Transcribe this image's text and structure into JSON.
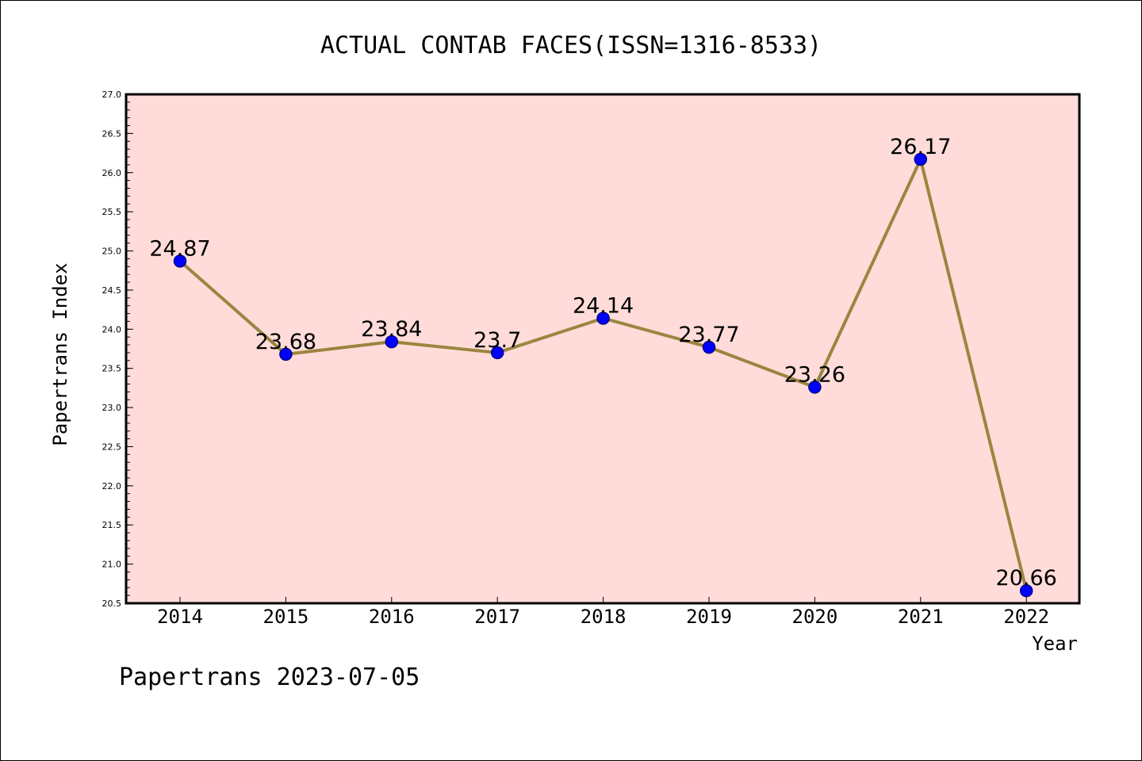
{
  "footer": {
    "text": "Papertrans 2023-07-05"
  },
  "chart_data": {
    "type": "line",
    "title": "ACTUAL CONTAB FACES(ISSN=1316-8533)",
    "xlabel": "Year",
    "ylabel": "Papertrans Index",
    "categories": [
      "2014",
      "2015",
      "2016",
      "2017",
      "2018",
      "2019",
      "2020",
      "2021",
      "2022"
    ],
    "values": [
      24.87,
      23.68,
      23.84,
      23.7,
      24.14,
      23.77,
      23.26,
      26.17,
      20.66
    ],
    "data_labels": [
      "24.87",
      "23.68",
      "23.84",
      "23.7",
      "24.14",
      "23.77",
      "23.26",
      "26.17",
      "20.66"
    ],
    "ylim": [
      20.5,
      27.0
    ],
    "yticks": [
      "20.5",
      "21.0",
      "21.5",
      "22.0",
      "22.5",
      "23.0",
      "23.5",
      "24.0",
      "24.5",
      "25.0",
      "25.5",
      "26.0",
      "26.5",
      "27.0"
    ],
    "grid": false,
    "legend": "none",
    "colors": {
      "plot_background": "#ffdcd9",
      "line": "#9b8540",
      "marker": "#0000ff",
      "marker_edge": "#00008b"
    }
  }
}
